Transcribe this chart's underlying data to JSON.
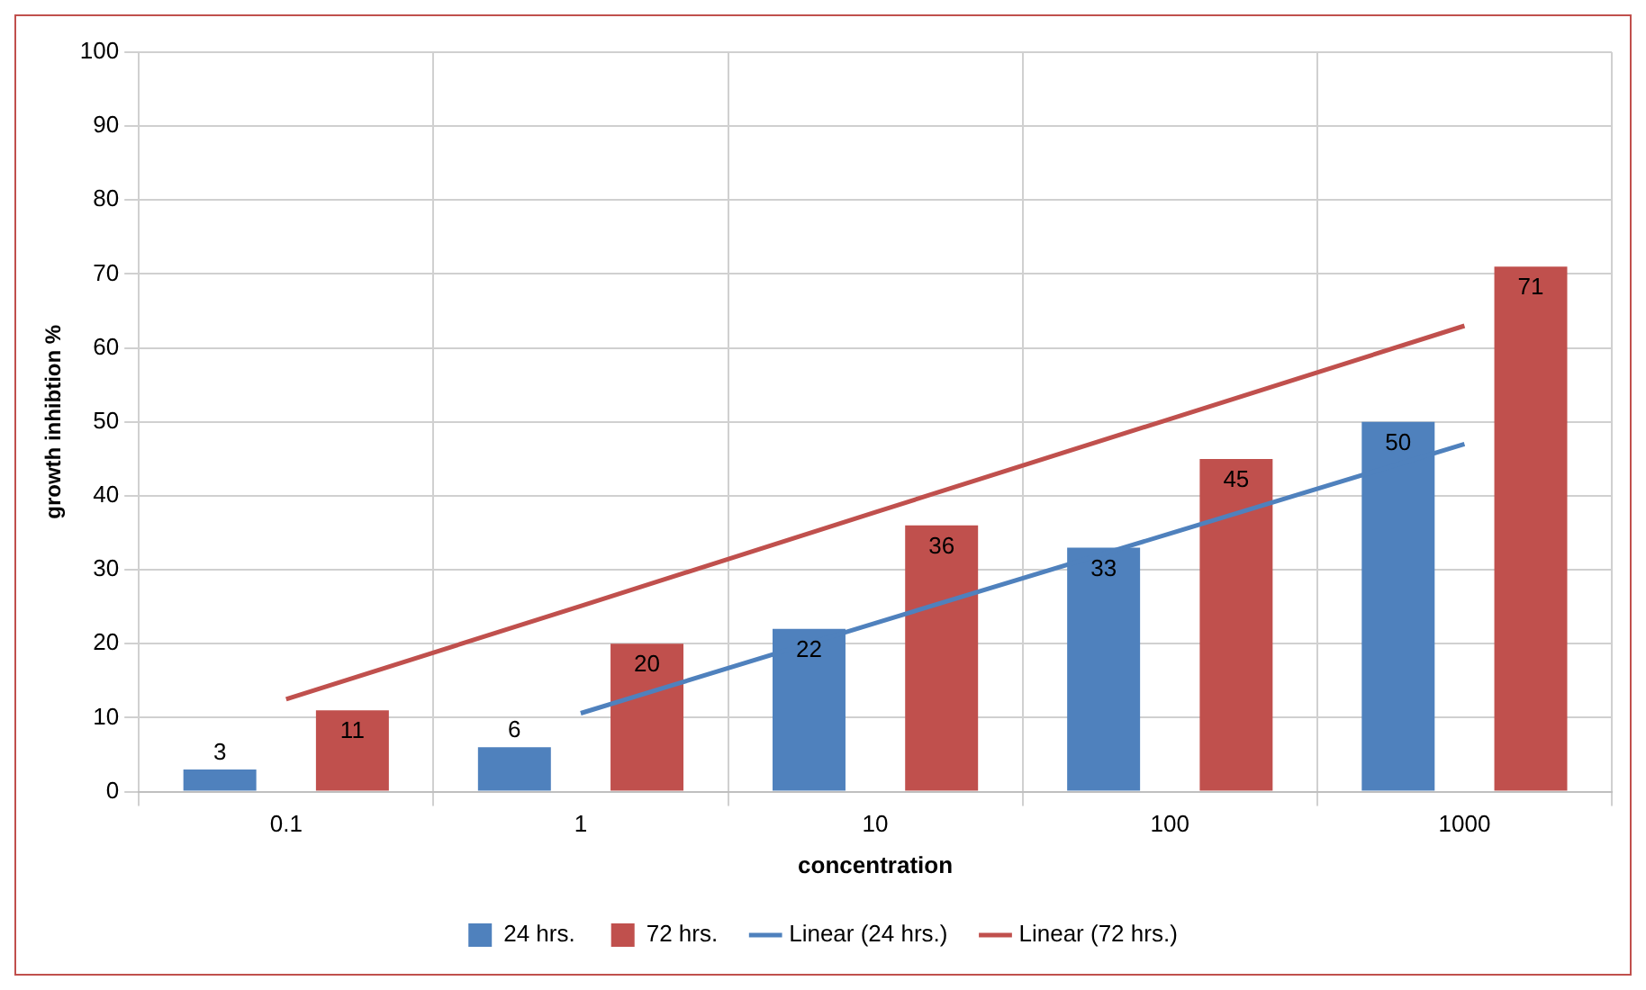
{
  "chart_data": {
    "type": "bar",
    "xlabel": "concentration",
    "ylabel": "growth inhibtion %",
    "categories": [
      "0.1",
      "1",
      "10",
      "100",
      "1000"
    ],
    "series": [
      {
        "name": "24 hrs.",
        "color": "#4f81bd",
        "values": [
          3,
          6,
          22,
          33,
          50
        ],
        "value_labels": [
          "3",
          "6",
          "22",
          "33",
          "50"
        ]
      },
      {
        "name": "72 hrs.",
        "color": "#c0504d",
        "values": [
          11,
          20,
          36,
          45,
          71
        ],
        "value_labels": [
          "11",
          "20",
          "36",
          "45",
          "71"
        ]
      },
      {
        "name": "Linear (24 hrs.)",
        "type": "line",
        "color": "#4f81bd",
        "values": [
          null,
          10.6,
          22.8,
          34.9,
          47
        ]
      },
      {
        "name": "Linear (72 hrs.)",
        "type": "line",
        "color": "#c0504d",
        "values": [
          12.5,
          25.1,
          37.8,
          50.4,
          63
        ]
      }
    ],
    "ylim": [
      0,
      100
    ],
    "yticks": [
      0,
      10,
      20,
      30,
      40,
      50,
      60,
      70,
      80,
      90,
      100
    ],
    "grid": true,
    "legend": "bottom",
    "marker": "none",
    "line_style": "solid"
  }
}
